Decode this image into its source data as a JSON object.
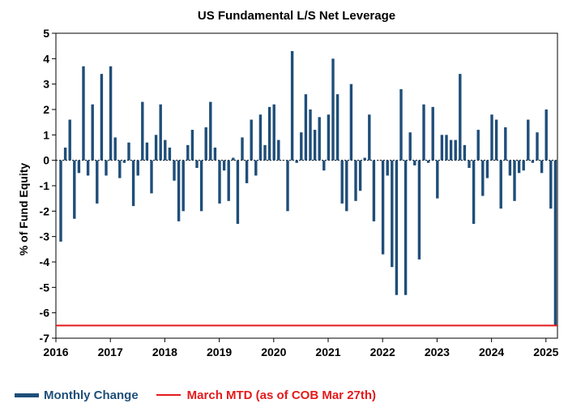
{
  "chart_data": {
    "type": "bar",
    "title": "US Fundamental L/S Net Leverage",
    "ylabel": "% of Fund Equity",
    "xlabel": "",
    "ylim": [
      -7,
      5
    ],
    "yticks": [
      5,
      4,
      3,
      2,
      1,
      0,
      -1,
      -2,
      -3,
      -4,
      -5,
      -6,
      -7
    ],
    "xticks": [
      "2016",
      "2017",
      "2018",
      "2019",
      "2020",
      "2021",
      "2022",
      "2023",
      "2024",
      "2025"
    ],
    "start": "2016-01",
    "series": [
      {
        "name": "Monthly Change",
        "color": "#1f4e79",
        "values": [
          -3.2,
          0.5,
          1.6,
          -2.3,
          -0.5,
          3.7,
          -0.6,
          2.2,
          -1.7,
          3.4,
          -0.6,
          3.7,
          0.9,
          -0.7,
          -0.1,
          0.7,
          -1.8,
          -0.6,
          2.3,
          0.7,
          -1.3,
          1.0,
          2.2,
          0.8,
          0.5,
          -0.8,
          -2.4,
          -2.0,
          0.6,
          1.2,
          -0.3,
          -2.0,
          1.3,
          2.3,
          0.5,
          -1.7,
          -0.4,
          -1.6,
          0.1,
          -2.5,
          0.9,
          -0.9,
          1.6,
          -0.6,
          1.8,
          0.6,
          2.1,
          2.2,
          0.8,
          0.0,
          -2.0,
          4.3,
          -0.1,
          1.1,
          2.6,
          2.0,
          1.2,
          1.7,
          -0.4,
          1.8,
          4.0,
          2.6,
          -1.7,
          -2.0,
          3.0,
          -1.6,
          -1.2,
          0.1,
          1.8,
          -2.4,
          0.0,
          -3.7,
          -0.6,
          -4.2,
          -5.3,
          2.8,
          -5.3,
          1.1,
          -0.2,
          -3.9,
          2.2,
          -0.1,
          2.1,
          -1.5,
          1.0,
          1.0,
          0.8,
          0.8,
          3.4,
          0.6,
          -0.3,
          -2.5,
          1.2,
          -1.4,
          -0.7,
          1.8,
          1.6,
          -1.9,
          1.3,
          -0.6,
          -1.6,
          -0.5,
          -0.4,
          1.6,
          -0.1,
          1.1,
          -0.5,
          2.0,
          -1.9,
          -6.5
        ]
      }
    ],
    "reference_line": {
      "name": "March MTD (as of COB Mar 27th)",
      "value": -6.5,
      "color": "#e41a1c"
    },
    "legend_position": "bottom-left"
  }
}
